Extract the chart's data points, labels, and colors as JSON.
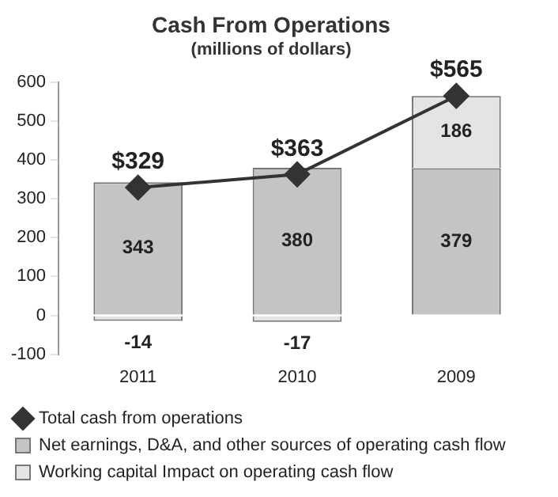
{
  "chart_data": {
    "type": "bar",
    "title": "Cash From Operations",
    "subtitle": "(millions of dollars)",
    "categories": [
      "2011",
      "2010",
      "2009"
    ],
    "series": [
      {
        "name": "Total cash from operations",
        "type": "line",
        "color": "#333333",
        "values": [
          329,
          363,
          565
        ],
        "value_labels": [
          "$329",
          "$363",
          "$565"
        ],
        "marker": "diamond"
      },
      {
        "name": "Net earnings, D&A, and other sources of operating cash flow",
        "color": "#c4c4c4",
        "values": [
          343,
          380,
          379
        ]
      },
      {
        "name": "Working capital Impact on operating cash flow",
        "color": "#e4e4e4",
        "values": [
          -14,
          -17,
          186
        ]
      }
    ],
    "stacked": true,
    "data_labels": true,
    "ylim": [
      -100,
      600
    ],
    "yticks": [
      -100,
      0,
      100,
      200,
      300,
      400,
      500,
      600
    ],
    "grid": false,
    "legend": "bottom"
  }
}
